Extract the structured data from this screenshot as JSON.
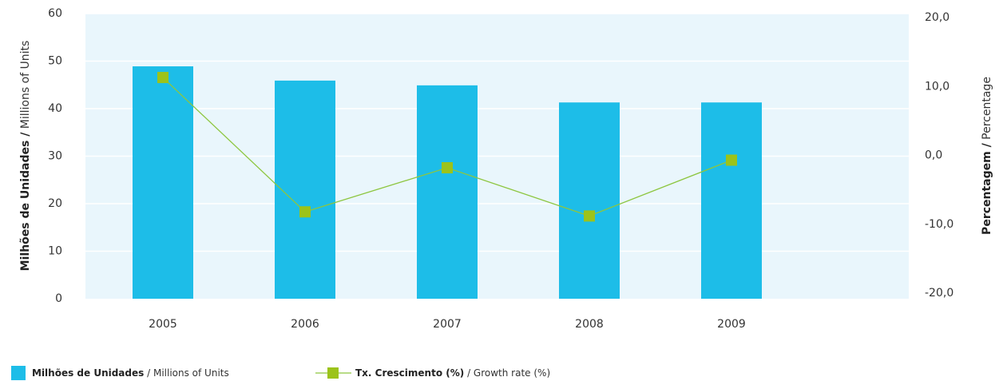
{
  "chart_data": {
    "type": "bar_line",
    "categories": [
      "2005",
      "2006",
      "2007",
      "2008",
      "2009"
    ],
    "series": [
      {
        "name": "Milhões de Unidades",
        "name_translation": "/ Millions of Units",
        "color": "#1dbde8",
        "type": "bar",
        "values": [
          48.9,
          45.9,
          44.9,
          41.3,
          41.3
        ]
      },
      {
        "name": "Tx. Crescimento (%)",
        "name_translation": "/ Growth rate (%)",
        "color": "#8dc63f",
        "type": "line",
        "axis": "y2",
        "values": [
          11.3,
          -8.2,
          -1.8,
          -8.8,
          -0.7
        ]
      }
    ],
    "y_label": "Milhões de Unidades /",
    "y_label_translation": "Millions of Units",
    "y2_label": "Percentagem /",
    "y2_label_translation": "Percentage",
    "ylim": [
      0,
      60
    ],
    "yticks": [
      0,
      10,
      20,
      30,
      40,
      50,
      60
    ],
    "y2lim": [
      -20,
      20
    ],
    "y2ticks": [
      {
        "value": -20,
        "label": "-20,0"
      },
      {
        "value": -10,
        "label": "-10,0"
      },
      {
        "value": 0,
        "label": "0,0"
      },
      {
        "value": 10,
        "label": "10,0"
      },
      {
        "value": 20,
        "label": "20,0"
      }
    ],
    "grid": true,
    "legend": "bottom-left"
  }
}
